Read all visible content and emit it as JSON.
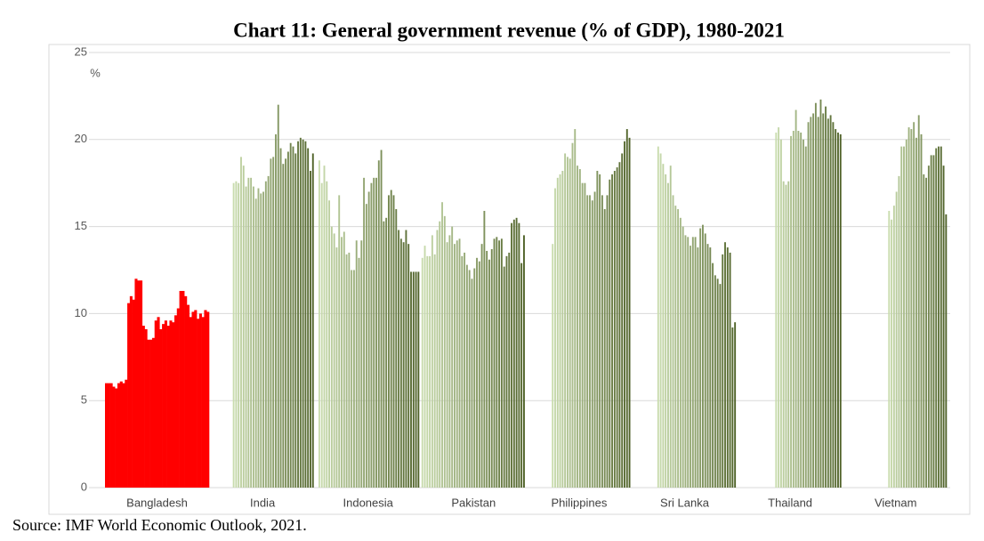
{
  "chart_data": {
    "type": "bar",
    "title": "Chart 11: General government revenue (% of GDP), 1980-2021",
    "y_unit": "%",
    "source": "Source: IMF World Economic Outlook, 2021.",
    "categories": [
      "Bangladesh",
      "India",
      "Indonesia",
      "Pakistan",
      "Philippines",
      "Sri Lanka",
      "Thailand",
      "Vietnam"
    ],
    "values": [
      [
        6.0,
        6.0,
        6.0,
        5.8,
        5.7,
        6.0,
        6.1,
        6.0,
        6.2,
        10.6,
        11.0,
        10.8,
        12.0,
        11.9,
        11.9,
        9.3,
        9.1,
        8.5,
        8.5,
        8.6,
        9.6,
        9.8,
        9.1,
        9.4,
        9.6,
        9.3,
        9.6,
        9.5,
        9.9,
        10.3,
        11.3,
        11.3,
        11.0,
        10.5,
        9.8,
        10.1,
        10.2,
        9.7,
        10.0,
        9.8,
        10.2,
        10.1
      ],
      [
        null,
        null,
        null,
        null,
        null,
        null,
        null,
        null,
        null,
        17.5,
        17.6,
        17.5,
        19.0,
        18.5,
        17.3,
        17.8,
        17.8,
        17.3,
        16.6,
        17.2,
        16.9,
        17.0,
        17.6,
        17.9,
        18.9,
        19.0,
        20.3,
        22.0,
        19.5,
        18.6,
        18.9,
        19.3,
        19.8,
        19.6,
        19.2,
        19.9,
        20.1,
        20.0,
        19.9,
        19.5,
        18.2,
        19.2
      ],
      [
        null,
        18.8,
        17.5,
        18.5,
        17.6,
        16.5,
        15.0,
        14.6,
        13.8,
        16.8,
        14.4,
        14.7,
        13.4,
        13.5,
        12.5,
        12.5,
        14.2,
        13.2,
        14.2,
        17.8,
        16.3,
        17.0,
        17.5,
        17.8,
        17.8,
        18.8,
        19.4,
        15.3,
        15.5,
        16.8,
        17.1,
        16.8,
        16.0,
        14.8,
        14.3,
        14.1,
        14.8,
        14.0,
        12.4,
        12.4,
        12.4,
        12.4
      ],
      [
        13.2,
        13.9,
        13.3,
        13.3,
        14.5,
        13.4,
        14.8,
        15.3,
        16.4,
        15.6,
        14.1,
        14.5,
        15.0,
        14.0,
        14.2,
        14.3,
        13.3,
        13.5,
        12.8,
        12.5,
        12.0,
        12.6,
        13.2,
        13.0,
        14.0,
        15.9,
        13.6,
        13.1,
        13.7,
        14.3,
        14.4,
        14.2,
        14.3,
        12.7,
        13.3,
        13.5,
        15.2,
        15.4,
        15.5,
        15.2,
        12.9,
        14.5
      ],
      [
        null,
        null,
        null,
        null,
        null,
        null,
        null,
        null,
        null,
        null,
        14.0,
        17.2,
        17.8,
        18.0,
        18.2,
        19.2,
        19.0,
        18.9,
        19.8,
        20.6,
        18.5,
        18.3,
        17.5,
        17.5,
        16.8,
        16.8,
        16.5,
        17.0,
        18.2,
        18.0,
        16.8,
        16.0,
        16.8,
        17.7,
        18.0,
        18.2,
        18.4,
        18.7,
        19.2,
        19.9,
        20.6,
        20.1
      ],
      [
        null,
        null,
        null,
        null,
        null,
        null,
        null,
        null,
        null,
        null,
        19.6,
        19.2,
        18.6,
        18.0,
        17.5,
        18.5,
        16.8,
        16.2,
        16.0,
        15.5,
        15.0,
        14.5,
        14.4,
        13.9,
        14.4,
        14.4,
        13.8,
        14.9,
        15.1,
        14.6,
        14.0,
        13.8,
        12.9,
        12.2,
        12.0,
        11.7,
        13.4,
        14.1,
        13.8,
        13.5,
        9.2,
        9.5
      ],
      [
        null,
        null,
        null,
        null,
        null,
        null,
        null,
        null,
        null,
        null,
        null,
        null,
        null,
        null,
        null,
        20.4,
        20.7,
        20.0,
        17.6,
        17.4,
        17.6,
        20.2,
        20.5,
        21.7,
        20.5,
        20.4,
        20.0,
        19.6,
        21.0,
        21.3,
        21.5,
        22.1,
        21.3,
        22.3,
        21.5,
        21.9,
        21.2,
        21.4,
        21.0,
        20.6,
        20.4,
        20.3
      ],
      [
        null,
        null,
        null,
        null,
        null,
        null,
        null,
        null,
        null,
        null,
        null,
        null,
        null,
        null,
        null,
        null,
        null,
        null,
        15.9,
        15.4,
        16.2,
        17.0,
        17.9,
        19.6,
        19.6,
        20.0,
        20.7,
        20.6,
        21.0,
        20.1,
        21.4,
        20.3,
        18.0,
        17.8,
        18.5,
        19.1,
        19.1,
        19.5,
        19.6,
        19.6,
        18.5,
        15.7
      ]
    ],
    "bar_color_light": "#c9dcae",
    "bar_color_dark": "#4f6228",
    "highlight_index": 0,
    "highlight_color": "#ff0000",
    "ylim": [
      0,
      25
    ],
    "yticks": [
      0,
      5,
      10,
      15,
      20,
      25
    ],
    "grid": true
  }
}
